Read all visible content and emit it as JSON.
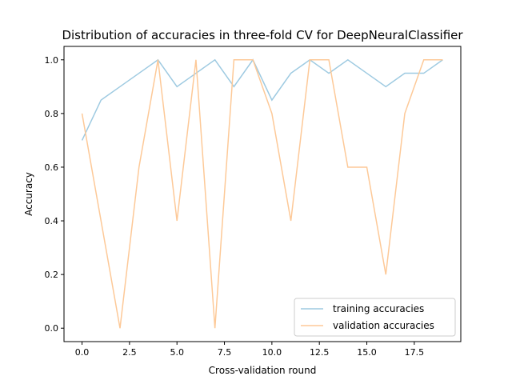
{
  "chart_data": {
    "type": "line",
    "title": "Distribution of accuracies in three-fold CV for DeepNeuralClassifier",
    "xlabel": "Cross-validation round",
    "ylabel": "Accuracy",
    "xlim": [
      -0.95,
      19.95
    ],
    "ylim": [
      -0.05,
      1.05
    ],
    "xticks": [
      0.0,
      2.5,
      5.0,
      7.5,
      10.0,
      12.5,
      15.0,
      17.5
    ],
    "xtick_labels": [
      "0.0",
      "2.5",
      "5.0",
      "7.5",
      "10.0",
      "12.5",
      "15.0",
      "17.5"
    ],
    "yticks": [
      0.0,
      0.2,
      0.4,
      0.6,
      0.8,
      1.0
    ],
    "ytick_labels": [
      "0.0",
      "0.2",
      "0.4",
      "0.6",
      "0.8",
      "1.0"
    ],
    "grid": false,
    "legend_position": "bottom-right",
    "x": [
      0,
      1,
      2,
      3,
      4,
      5,
      6,
      7,
      8,
      9,
      10,
      11,
      12,
      13,
      14,
      15,
      16,
      17,
      18,
      19
    ],
    "series": [
      {
        "name": "training accuracies",
        "color": "#9ecae1",
        "values": [
          0.7,
          0.85,
          0.9,
          0.95,
          1.0,
          0.9,
          0.95,
          1.0,
          0.9,
          1.0,
          0.85,
          0.95,
          1.0,
          0.95,
          1.0,
          0.95,
          0.9,
          0.95,
          0.95,
          1.0
        ]
      },
      {
        "name": "validation accuracies",
        "color": "#fdc998",
        "values": [
          0.8,
          0.4,
          0.0,
          0.6,
          1.0,
          0.4,
          1.0,
          0.0,
          1.0,
          1.0,
          0.8,
          0.4,
          1.0,
          1.0,
          0.6,
          0.6,
          0.2,
          0.8,
          1.0,
          1.0
        ]
      }
    ]
  }
}
